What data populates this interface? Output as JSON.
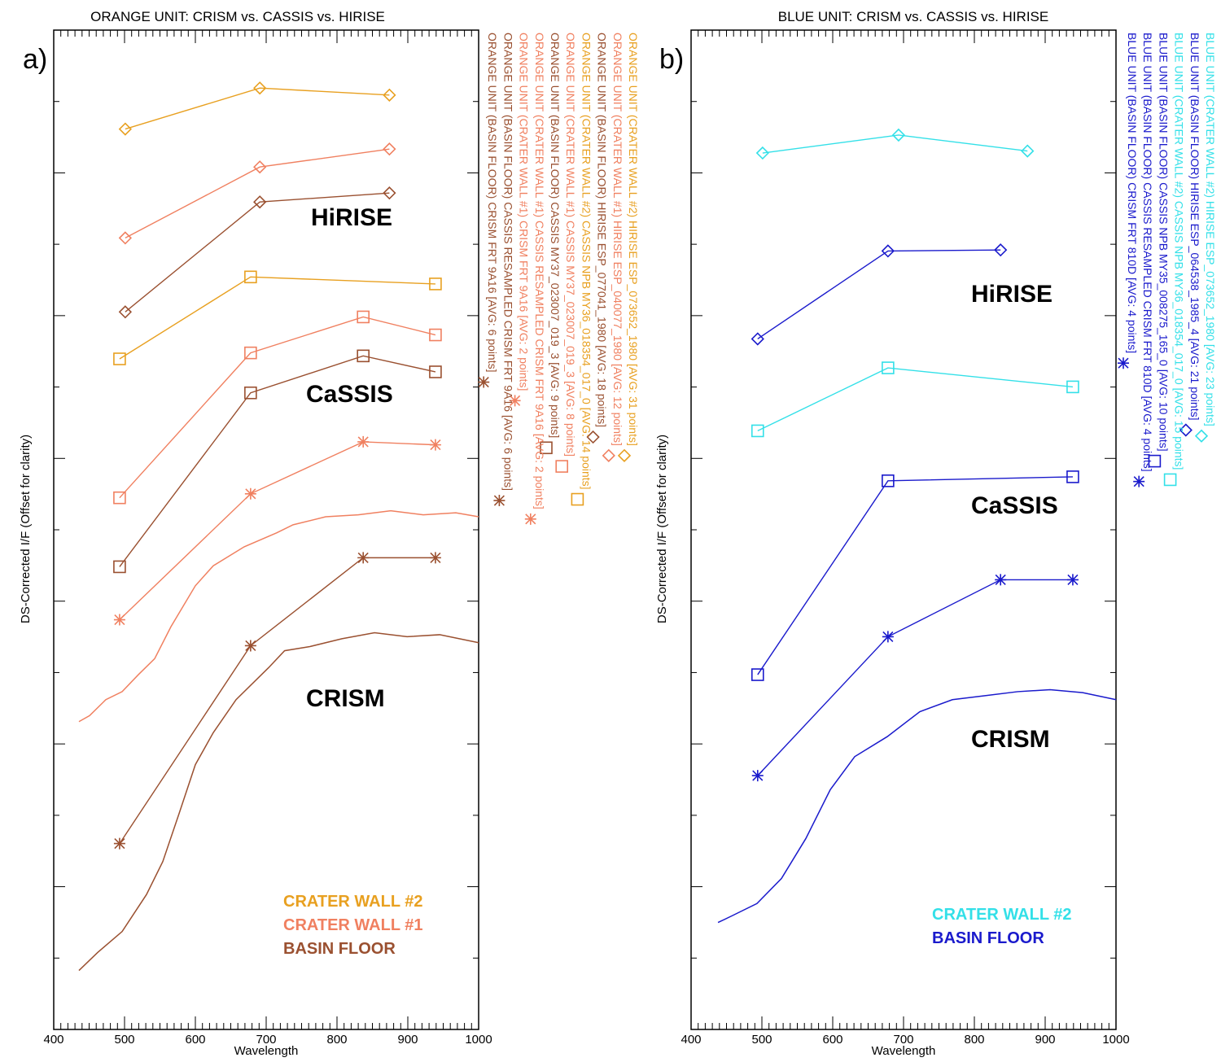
{
  "colors": {
    "crater_wall_2_orange": "#e8a020",
    "crater_wall_1_orange": "#f08060",
    "basin_floor_orange": "#9a5030",
    "crater_wall_2_blue": "#33e0e8",
    "basin_floor_blue": "#1a1acc"
  },
  "chart_data": [
    {
      "type": "line",
      "panel_label": "a)",
      "title": "ORANGE UNIT: CRISM vs. CASSIS vs. HIRISE",
      "xlabel": "Wavelength",
      "ylabel": "DS-Corrected I/F (Offset for clarity)",
      "xlim": [
        400,
        1000
      ],
      "ylim": [
        0,
        100
      ],
      "xticks": [
        400,
        500,
        600,
        700,
        800,
        900,
        1000
      ],
      "group_labels": [
        "HiRISE",
        "CaSSIS",
        "CRISM"
      ],
      "key": [
        {
          "text": "CRATER WALL #2",
          "color": "#e8a020"
        },
        {
          "text": "CRATER WALL #1",
          "color": "#f08060"
        },
        {
          "text": "BASIN FLOOR",
          "color": "#9a5030"
        }
      ],
      "series": [
        {
          "name": "ORANGE UNIT (CRATER WALL #2) HIRISE ESP_073652_1980 [AVG: 31 points]",
          "color": "#e8a020",
          "marker": "diamond",
          "points": [
            [
              501,
              90.1
            ],
            [
              691,
              94.2
            ],
            [
              874,
              93.5
            ]
          ]
        },
        {
          "name": "ORANGE UNIT (CRATER WALL #1) HIRISE ESP_040077_1980 [AVG: 12 points]",
          "color": "#f08060",
          "marker": "diamond",
          "points": [
            [
              501,
              79.2
            ],
            [
              691,
              86.3
            ],
            [
              874,
              88.1
            ]
          ]
        },
        {
          "name": "ORANGE UNIT (BASIN FLOOR) HIRISE ESP_077041_1980 [AVG: 18 points]",
          "color": "#9a5030",
          "marker": "diamond",
          "points": [
            [
              501,
              71.8
            ],
            [
              691,
              82.8
            ],
            [
              874,
              83.7
            ]
          ]
        },
        {
          "name": "ORANGE UNIT (CRATER WALL #2) CASSIS NPB MY36_018354_017_0 [AVG: 14 points]",
          "color": "#e8a020",
          "marker": "square",
          "points": [
            [
              493,
              67.1
            ],
            [
              678,
              75.3
            ],
            [
              939,
              74.6
            ]
          ]
        },
        {
          "name": "ORANGE UNIT (CRATER WALL #1) CASSIS MY37_023007_019_3 [AVG: 8 points]",
          "color": "#f08060",
          "marker": "square",
          "points": [
            [
              493,
              53.2
            ],
            [
              678,
              67.7
            ],
            [
              837,
              71.3
            ],
            [
              939,
              69.5
            ]
          ]
        },
        {
          "name": "ORANGE UNIT (BASIN FLOOR) CASSIS MY37_023007_019_3 [AVG: 9 points]",
          "color": "#9a5030",
          "marker": "square",
          "points": [
            [
              493,
              46.3
            ],
            [
              678,
              63.7
            ],
            [
              837,
              67.4
            ],
            [
              939,
              65.8
            ]
          ]
        },
        {
          "name": "ORANGE UNIT (CRATER WALL #1) CASSIS RESAMPLED CRISM FRT 9A16 [AVG: 2 points]",
          "color": "#f08060",
          "marker": "asterisk",
          "points": [
            [
              493,
              41.0
            ],
            [
              678,
              53.6
            ],
            [
              837,
              58.8
            ],
            [
              939,
              58.5
            ]
          ]
        },
        {
          "name": "ORANGE UNIT (CRATER WALL #1) CRISM FRT 9A16 [AVG: 2 points]",
          "color": "#f08060",
          "marker": "none",
          "points": [
            [
              435.6,
              30.8
            ],
            [
              450.6,
              31.4
            ],
            [
              473.6,
              33.0
            ],
            [
              496.6,
              33.8
            ],
            [
              519.5,
              35.5
            ],
            [
              542.5,
              37.1
            ],
            [
              565.5,
              40.3
            ],
            [
              600,
              44.4
            ],
            [
              625.3,
              46.4
            ],
            [
              669,
              48.3
            ],
            [
              715,
              49.7
            ],
            [
              738,
              50.5
            ],
            [
              784,
              51.3
            ],
            [
              830,
              51.5
            ],
            [
              875.9,
              51.9
            ],
            [
              921.8,
              51.5
            ],
            [
              967.8,
              51.7
            ],
            [
              1000,
              51.3
            ]
          ]
        },
        {
          "name": "ORANGE UNIT (BASIN FLOOR) CASSIS RESAMPLED CRISM FRT 9A16 [AVG: 6 points]",
          "color": "#9a5030",
          "marker": "asterisk",
          "points": [
            [
              493,
              18.6
            ],
            [
              678,
              38.4
            ],
            [
              837,
              47.2
            ],
            [
              939,
              47.2
            ]
          ]
        },
        {
          "name": "ORANGE UNIT (BASIN FLOOR) CRISM FRT 9A16 [AVG: 6 points]",
          "color": "#9a5030",
          "marker": "none",
          "points": [
            [
              435.6,
              5.9
            ],
            [
              462,
              7.7
            ],
            [
              496.6,
              9.8
            ],
            [
              531,
              13.5
            ],
            [
              554,
              16.8
            ],
            [
              577,
              21.6
            ],
            [
              600,
              26.5
            ],
            [
              625.3,
              29.7
            ],
            [
              657.5,
              33.0
            ],
            [
              703.4,
              36.2
            ],
            [
              726,
              37.9
            ],
            [
              761,
              38.3
            ],
            [
              807,
              39.1
            ],
            [
              853,
              39.7
            ],
            [
              899,
              39.3
            ],
            [
              945,
              39.5
            ],
            [
              1000,
              38.7
            ]
          ]
        }
      ]
    },
    {
      "type": "line",
      "panel_label": "b)",
      "title": "BLUE UNIT: CRISM vs. CASSIS vs. HIRISE",
      "xlabel": "Wavelength",
      "ylabel": "DS-Corrected I/F (Offset for clarity)",
      "xlim": [
        400,
        1000
      ],
      "ylim": [
        0,
        100
      ],
      "xticks": [
        400,
        500,
        600,
        700,
        800,
        900,
        1000
      ],
      "group_labels": [
        "HiRISE",
        "CaSSIS",
        "CRISM"
      ],
      "key": [
        {
          "text": "CRATER WALL #2",
          "color": "#33e0e8"
        },
        {
          "text": "BASIN FLOOR",
          "color": "#1a1acc"
        }
      ],
      "series": [
        {
          "name": "BLUE UNIT (CRATER WALL #2) HIRISE ESP_073652_1980 [AVG: 23 points]",
          "color": "#33e0e8",
          "marker": "diamond",
          "points": [
            [
              501,
              87.7
            ],
            [
              693,
              89.5
            ],
            [
              875,
              87.9
            ]
          ]
        },
        {
          "name": "BLUE UNIT (BASIN FLOOR) HIRISE ESP_064538_1985_4 [AVG: 21 points]",
          "color": "#1a1acc",
          "marker": "diamond",
          "points": [
            [
              494,
              69.1
            ],
            [
              678,
              77.9
            ],
            [
              837,
              78.0
            ]
          ]
        },
        {
          "name": "BLUE UNIT (CRATER WALL #2) CASSIS NPB MY36_018354_017_0 [AVG: 15 points]",
          "color": "#33e0e8",
          "marker": "square",
          "points": [
            [
              494,
              59.9
            ],
            [
              678,
              66.2
            ],
            [
              939,
              64.3
            ]
          ]
        },
        {
          "name": "BLUE UNIT (BASIN FLOOR) CASSIS NPB MY35_008275_165_0 [AVG: 10 points]",
          "color": "#1a1acc",
          "marker": "square",
          "points": [
            [
              494,
              35.5
            ],
            [
              678,
              54.9
            ],
            [
              939,
              55.3
            ]
          ]
        },
        {
          "name": "BLUE UNIT (BASIN FLOOR) CASSIS RESAMPLED CRISM FRT 810D [AVG: 4 points]",
          "color": "#1a1acc",
          "marker": "asterisk",
          "points": [
            [
              494,
              25.4
            ],
            [
              678,
              39.3
            ],
            [
              837,
              45.0
            ],
            [
              939,
              45.0
            ]
          ]
        },
        {
          "name": "BLUE UNIT (BASIN FLOOR) CRISM FRT 810D [AVG: 4 points]",
          "color": "#1a1acc",
          "marker": "none",
          "points": [
            [
              438,
              10.7
            ],
            [
              458.6,
              11.4
            ],
            [
              493,
              12.6
            ],
            [
              527.6,
              15.1
            ],
            [
              562,
              19.1
            ],
            [
              596.6,
              24.0
            ],
            [
              631,
              27.3
            ],
            [
              677,
              29.3
            ],
            [
              723,
              31.8
            ],
            [
              769,
              33.0
            ],
            [
              815,
              33.4
            ],
            [
              861,
              33.8
            ],
            [
              907,
              34.0
            ],
            [
              953,
              33.7
            ],
            [
              1000,
              33.0
            ]
          ]
        }
      ]
    }
  ]
}
